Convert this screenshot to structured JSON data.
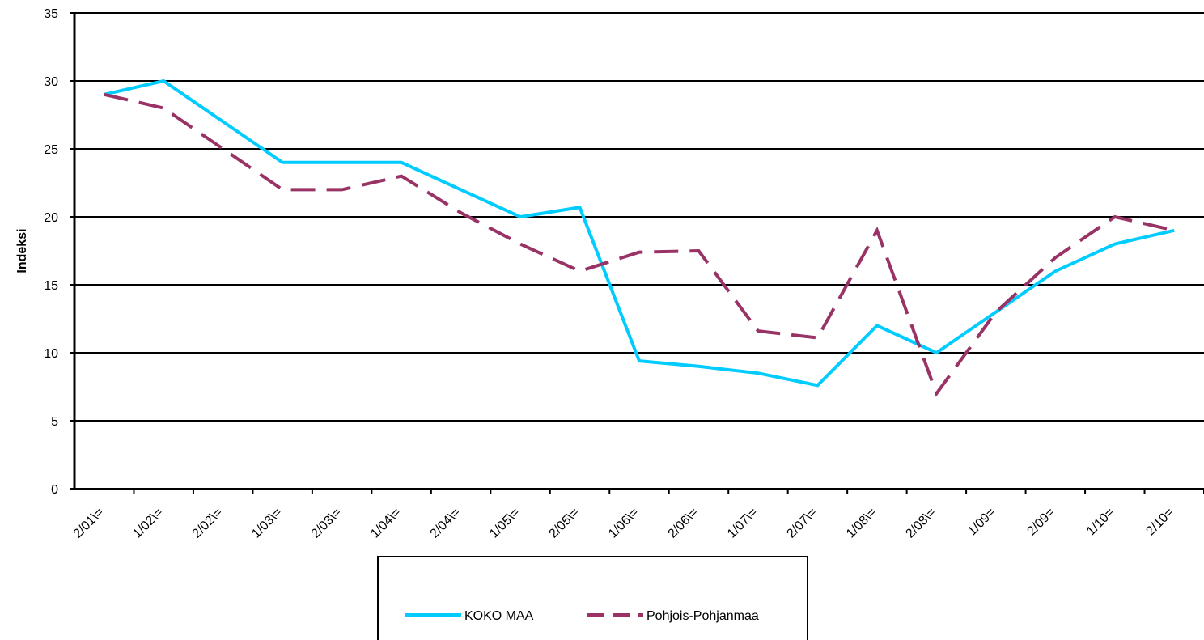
{
  "chart_data": {
    "type": "line",
    "y_label": "Indeksi",
    "categories": [
      "2/01\\=",
      "1/02\\=",
      "2/02\\=",
      "1/03\\=",
      "2/03\\=",
      "1/04\\=",
      "2/04\\=",
      "1/05\\=",
      "2/05\\=",
      "1/06\\=",
      "2/06\\=",
      "1/07\\=",
      "2/07\\=",
      "1/08\\=",
      "2/08\\=",
      "1/09=",
      "2/09=",
      "1/10=",
      "2/10="
    ],
    "series": [
      {
        "name": "KOKO MAA",
        "color": "#00ccff",
        "dash": false,
        "values": [
          29,
          30,
          27,
          24,
          24,
          24,
          22,
          20,
          20.7,
          9.4,
          9,
          8.5,
          7.6,
          12,
          10,
          13,
          16,
          18,
          19
        ]
      },
      {
        "name": "Pohjois-Pohjanmaa",
        "color": "#993366",
        "dash": true,
        "values": [
          29,
          28,
          25,
          22,
          22,
          23,
          20.3,
          18,
          16,
          17.4,
          17.5,
          11.6,
          11.1,
          19,
          7,
          13,
          17,
          20,
          19
        ]
      }
    ],
    "ylim": [
      0,
      35
    ],
    "yticks": [
      0,
      5,
      10,
      15,
      20,
      25,
      30,
      35
    ],
    "grid": true
  }
}
